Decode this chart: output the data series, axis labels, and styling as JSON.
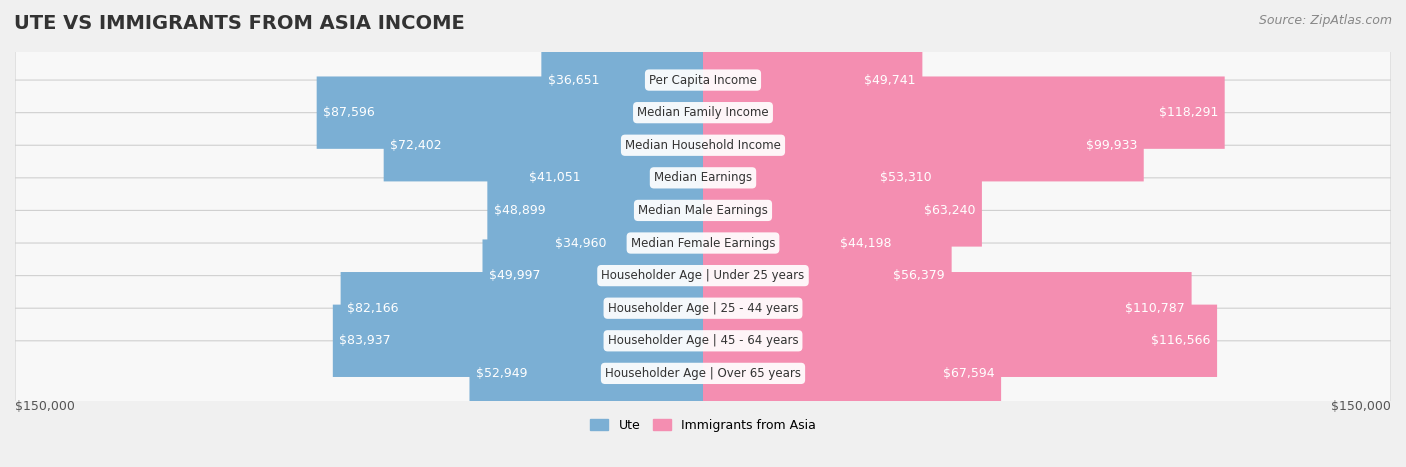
{
  "title": "UTE VS IMMIGRANTS FROM ASIA INCOME",
  "source": "Source: ZipAtlas.com",
  "categories": [
    "Per Capita Income",
    "Median Family Income",
    "Median Household Income",
    "Median Earnings",
    "Median Male Earnings",
    "Median Female Earnings",
    "Householder Age | Under 25 years",
    "Householder Age | 25 - 44 years",
    "Householder Age | 45 - 64 years",
    "Householder Age | Over 65 years"
  ],
  "ute_values": [
    36651,
    87596,
    72402,
    41051,
    48899,
    34960,
    49997,
    82166,
    83937,
    52949
  ],
  "asia_values": [
    49741,
    118291,
    99933,
    53310,
    63240,
    44198,
    56379,
    110787,
    116566,
    67594
  ],
  "ute_color": "#7bafd4",
  "ute_color_dark": "#4a7fbf",
  "asia_color": "#f48eb1",
  "asia_color_dark": "#e8538a",
  "ute_label": "Ute",
  "asia_label": "Immigrants from Asia",
  "max_value": 150000,
  "background_color": "#f0f0f0",
  "row_bg_color": "#f8f8f8",
  "row_border_color": "#d0d0d0",
  "label_bg_color": "#ffffff",
  "title_fontsize": 14,
  "source_fontsize": 9,
  "value_fontsize": 9,
  "cat_fontsize": 8.5,
  "axis_label": "$150,000",
  "axis_label_fontsize": 9
}
